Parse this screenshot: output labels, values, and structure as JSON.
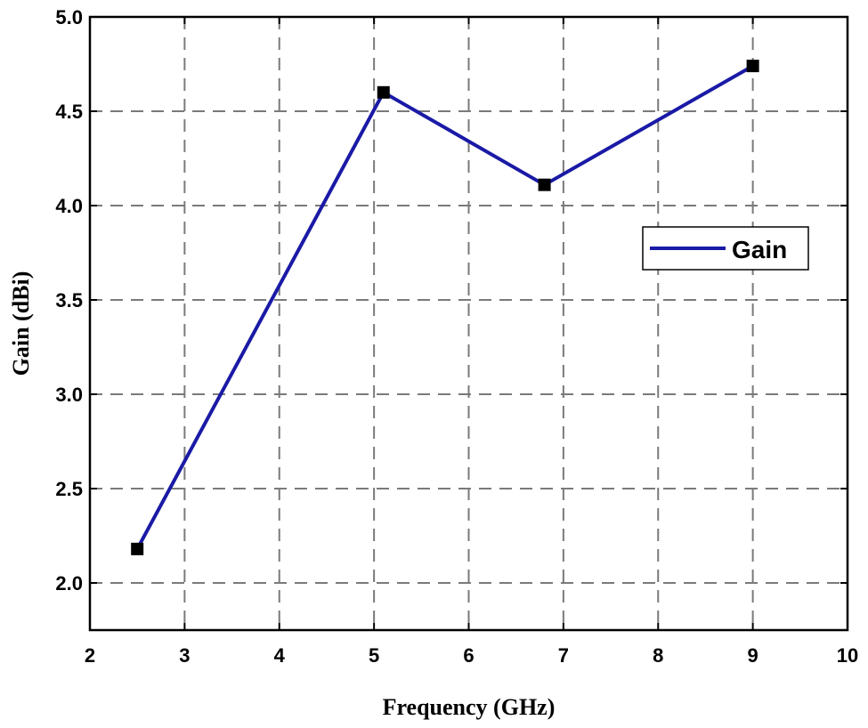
{
  "chart_data": {
    "type": "line",
    "title": "",
    "xlabel": "Frequency (GHz)",
    "ylabel": "Gain (dBi)",
    "xlim": [
      2,
      10
    ],
    "ylim": [
      1.75,
      5.0
    ],
    "xticks": [
      2,
      3,
      4,
      5,
      6,
      7,
      8,
      9,
      10
    ],
    "yticks": [
      2.0,
      2.5,
      3.0,
      3.5,
      4.0,
      4.5,
      5.0
    ],
    "xtick_labels": [
      "2",
      "3",
      "4",
      "5",
      "6",
      "7",
      "8",
      "9",
      "10"
    ],
    "ytick_labels": [
      "2.0",
      "2.5",
      "3.0",
      "3.5",
      "4.0",
      "4.5",
      "5.0"
    ],
    "grid": true,
    "grid_style": "dashed",
    "legend_position": "upper-right",
    "series": [
      {
        "name": "Gain",
        "color": "#1a1aa6",
        "marker": "square",
        "marker_color": "#000000",
        "x": [
          2.5,
          5.1,
          6.8,
          9.0
        ],
        "y": [
          2.18,
          4.6,
          4.11,
          4.74
        ]
      }
    ]
  }
}
